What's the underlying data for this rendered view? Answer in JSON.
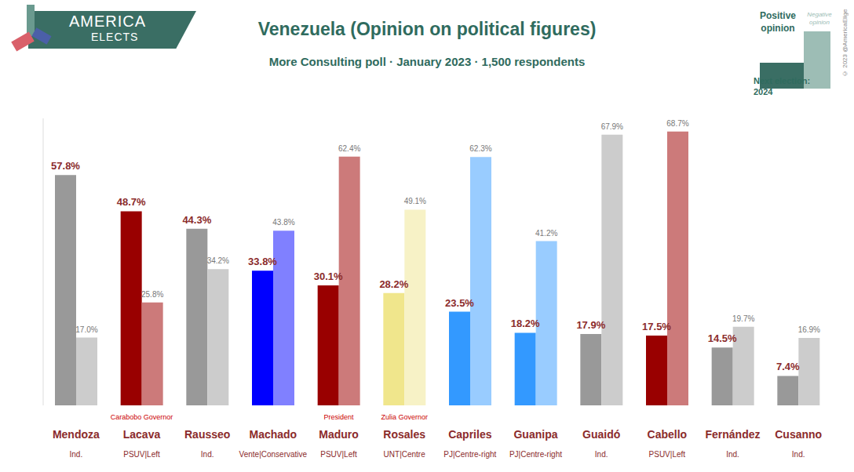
{
  "chart_data": {
    "type": "bar",
    "title": "Venezuela (Opinion on political figures)",
    "subtitle": "More Consulting poll · January 2023 · 1,500 respondents",
    "logo": [
      "AMERICA",
      "ELECTS"
    ],
    "copyright": "© 2023 @AmericaElige",
    "legend_box": {
      "positive": "Positive opinion",
      "negative": "Negative opinion",
      "next_election_label": "Next election:",
      "next_election_year": "2024"
    },
    "categories": [
      "Mendoza",
      "Lacava",
      "Rausseo",
      "Machado",
      "Maduro",
      "Rosales",
      "Capriles",
      "Guanipa",
      "Guaidó",
      "Cabello",
      "Fernández",
      "Cusanno"
    ],
    "parties": [
      "Ind.",
      "PSUV|Left",
      "Ind.",
      "Vente|Conservative",
      "PSUV|Left",
      "UNT|Centre",
      "PJ|Centre-right",
      "PJ|Centre-right",
      "Ind.",
      "PSUV|Left",
      "Ind.",
      "Ind."
    ],
    "notes": [
      null,
      "Carabobo Governor",
      null,
      null,
      "President",
      "Zulia Governor",
      null,
      null,
      null,
      null,
      null,
      null
    ],
    "series": [
      {
        "name": "Positive opinion",
        "values": [
          57.8,
          48.7,
          44.3,
          33.8,
          30.1,
          28.2,
          23.5,
          18.2,
          17.9,
          17.5,
          14.5,
          7.4
        ],
        "value_labels": [
          "57.8%",
          "48.7%",
          "44.3%",
          "33.8%",
          "30.1%",
          "28.2%",
          "23.5%",
          "18.2%",
          "17.9%",
          "17.5%",
          "14.5%",
          "7.4%"
        ],
        "colors": [
          "#999999",
          "#990000",
          "#999999",
          "#0000ff",
          "#990000",
          "#f0e68c",
          "#3399ff",
          "#3399ff",
          "#999999",
          "#990000",
          "#999999",
          "#999999"
        ]
      },
      {
        "name": "Negative opinion",
        "values": [
          17.0,
          25.8,
          34.2,
          43.8,
          62.4,
          49.1,
          62.3,
          41.2,
          67.9,
          68.7,
          19.7,
          16.9
        ],
        "value_labels": [
          "17.0%",
          "25.8%",
          "34.2%",
          "43.8%",
          "62.4%",
          "49.1%",
          "62.3%",
          "41.2%",
          "67.9%",
          "68.7%",
          "19.7%",
          "16.9%"
        ],
        "colors": [
          "#cccccc",
          "#cc7a7a",
          "#cccccc",
          "#8080ff",
          "#cc7a7a",
          "#f7f2c6",
          "#99ccff",
          "#99ccff",
          "#cccccc",
          "#cc7a7a",
          "#cccccc",
          "#cccccc"
        ]
      }
    ],
    "ylim": [
      0,
      72
    ],
    "yticks": [],
    "tick_labels": false,
    "grid": false,
    "data_labels": true,
    "legend": "top right"
  }
}
